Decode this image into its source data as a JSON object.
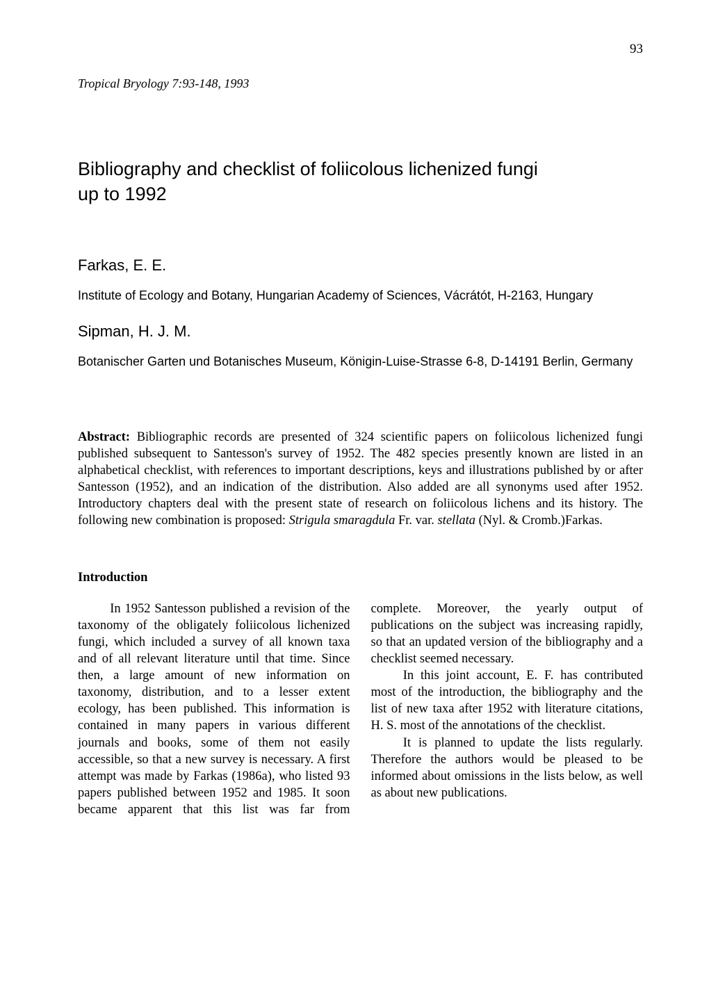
{
  "page_number": "93",
  "running_head": "Tropical Bryology 7:93-148, 1993",
  "title_line1": "Bibliography and checklist of foliicolous lichenized fungi",
  "title_line2": "up to 1992",
  "author1_name": "Farkas, E. E.",
  "author1_affiliation": "Institute of Ecology and Botany, Hungarian Academy of Sciences, Vácrátót, H-2163, Hungary",
  "author2_name": "Sipman, H. J. M.",
  "author2_affiliation": "Botanischer Garten und Botanisches Museum, Königin-Luise-Strasse 6-8, D-14191 Berlin, Germany",
  "abstract_label": "Abstract:",
  "abstract_text_1": " Bibliographic records are presented of 324 scientific papers on foliicolous lichenized fungi published subsequent to Santesson's survey of 1952. The 482 species presently known are listed in an alphabetical checklist, with references to important descriptions, keys and illustrations published by or after Santesson (1952), and an indication of the distribution. Also added are all synonyms used after 1952. Introductory chapters deal with the present state of research on foliicolous lichens and its history. The following new combination is proposed: ",
  "abstract_ital_1": "Strigula smaragdula",
  "abstract_text_2": " Fr. var. ",
  "abstract_ital_2": "stellata",
  "abstract_text_3": " (Nyl. & Cromb.)Farkas.",
  "section_head": "Introduction",
  "body_p1": "In 1952 Santesson published a revision of the taxonomy of the obligately foliicolous lichenized fungi, which included a survey of all known taxa and of all relevant literature until that time. Since then, a large amount of new information on taxonomy, distribution, and to a lesser extent ecology, has been published. This information is contained in many papers in various different journals and books, some of them not easily accessible, so that a new survey is necessary. A first attempt was made by Farkas (1986a), who listed 93 papers published between 1952 and 1985. It soon became apparent that this list was far from complete. Moreover, the yearly output of publications on the subject was increasing rapidly, so that an updated version of the bibliography and a checklist seemed necessary.",
  "body_p2": "In this joint account, E. F. has contributed most of the introduction, the bibliography and the list of new taxa after 1952 with literature citations, H. S. most of the annotations of the checklist.",
  "body_p3": "It is planned to update the lists regularly. Therefore the authors would be pleased to be informed about omissions in the lists below, as well as about new publications."
}
